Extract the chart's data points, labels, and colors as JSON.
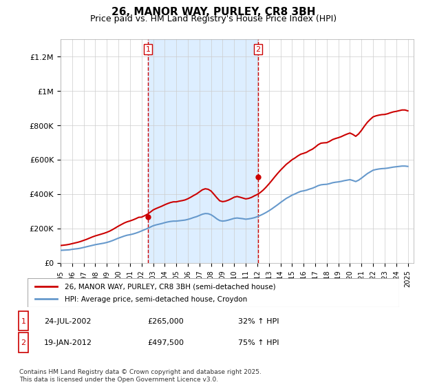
{
  "title": "26, MANOR WAY, PURLEY, CR8 3BH",
  "subtitle": "Price paid vs. HM Land Registry's House Price Index (HPI)",
  "ylabel_ticks": [
    "£0",
    "£200K",
    "£400K",
    "£600K",
    "£800K",
    "£1M",
    "£1.2M"
  ],
  "ytick_values": [
    0,
    200000,
    400000,
    600000,
    800000,
    1000000,
    1200000
  ],
  "ylim": [
    0,
    1300000
  ],
  "xlim_start": 1995,
  "xlim_end": 2025.5,
  "purchase1_date": 2002.56,
  "purchase1_price": 265000,
  "purchase1_label": "1",
  "purchase2_date": 2012.05,
  "purchase2_price": 497500,
  "purchase2_label": "2",
  "line1_label": "26, MANOR WAY, PURLEY, CR8 3BH (semi-detached house)",
  "line2_label": "HPI: Average price, semi-detached house, Croydon",
  "line1_color": "#cc0000",
  "line2_color": "#6699cc",
  "shade_color": "#ddeeff",
  "vline_color": "#cc0000",
  "annotation1": "1    24-JUL-2002    £265,000    32% ↑ HPI",
  "annotation2": "2    19-JAN-2012    £497,500    75% ↑ HPI",
  "footer": "Contains HM Land Registry data © Crown copyright and database right 2025.\nThis data is licensed under the Open Government Licence v3.0.",
  "hpi_years": [
    1995.0,
    1995.25,
    1995.5,
    1995.75,
    1996.0,
    1996.25,
    1996.5,
    1996.75,
    1997.0,
    1997.25,
    1997.5,
    1997.75,
    1998.0,
    1998.25,
    1998.5,
    1998.75,
    1999.0,
    1999.25,
    1999.5,
    1999.75,
    2000.0,
    2000.25,
    2000.5,
    2000.75,
    2001.0,
    2001.25,
    2001.5,
    2001.75,
    2002.0,
    2002.25,
    2002.5,
    2002.75,
    2003.0,
    2003.25,
    2003.5,
    2003.75,
    2004.0,
    2004.25,
    2004.5,
    2004.75,
    2005.0,
    2005.25,
    2005.5,
    2005.75,
    2006.0,
    2006.25,
    2006.5,
    2006.75,
    2007.0,
    2007.25,
    2007.5,
    2007.75,
    2008.0,
    2008.25,
    2008.5,
    2008.75,
    2009.0,
    2009.25,
    2009.5,
    2009.75,
    2010.0,
    2010.25,
    2010.5,
    2010.75,
    2011.0,
    2011.25,
    2011.5,
    2011.75,
    2012.0,
    2012.25,
    2012.5,
    2012.75,
    2013.0,
    2013.25,
    2013.5,
    2013.75,
    2014.0,
    2014.25,
    2014.5,
    2014.75,
    2015.0,
    2015.25,
    2015.5,
    2015.75,
    2016.0,
    2016.25,
    2016.5,
    2016.75,
    2017.0,
    2017.25,
    2017.5,
    2017.75,
    2018.0,
    2018.25,
    2018.5,
    2018.75,
    2019.0,
    2019.25,
    2019.5,
    2019.75,
    2020.0,
    2020.25,
    2020.5,
    2020.75,
    2021.0,
    2021.25,
    2021.5,
    2021.75,
    2022.0,
    2022.25,
    2022.5,
    2022.75,
    2023.0,
    2023.25,
    2023.5,
    2023.75,
    2024.0,
    2024.25,
    2024.5,
    2024.75,
    2025.0
  ],
  "hpi_values": [
    72000,
    73000,
    74000,
    75000,
    78000,
    80000,
    82000,
    85000,
    89000,
    93000,
    97000,
    101000,
    105000,
    108000,
    111000,
    114000,
    118000,
    123000,
    129000,
    136000,
    143000,
    149000,
    155000,
    160000,
    163000,
    167000,
    172000,
    178000,
    185000,
    192000,
    199000,
    207000,
    215000,
    220000,
    224000,
    228000,
    233000,
    237000,
    240000,
    242000,
    242000,
    244000,
    246000,
    248000,
    252000,
    257000,
    263000,
    268000,
    275000,
    282000,
    286000,
    285000,
    279000,
    268000,
    255000,
    245000,
    242000,
    244000,
    248000,
    253000,
    258000,
    260000,
    258000,
    256000,
    253000,
    255000,
    258000,
    262000,
    268000,
    275000,
    283000,
    292000,
    302000,
    313000,
    325000,
    337000,
    350000,
    362000,
    374000,
    383000,
    393000,
    400000,
    408000,
    415000,
    418000,
    422000,
    428000,
    433000,
    440000,
    448000,
    453000,
    455000,
    456000,
    460000,
    465000,
    468000,
    470000,
    473000,
    477000,
    480000,
    483000,
    478000,
    472000,
    480000,
    492000,
    505000,
    518000,
    528000,
    538000,
    542000,
    545000,
    547000,
    548000,
    550000,
    553000,
    556000,
    558000,
    560000,
    562000,
    562000,
    560000
  ],
  "price_years": [
    1995.0,
    1995.25,
    1995.5,
    1995.75,
    1996.0,
    1996.25,
    1996.5,
    1996.75,
    1997.0,
    1997.25,
    1997.5,
    1997.75,
    1998.0,
    1998.25,
    1998.5,
    1998.75,
    1999.0,
    1999.25,
    1999.5,
    1999.75,
    2000.0,
    2000.25,
    2000.5,
    2000.75,
    2001.0,
    2001.25,
    2001.5,
    2001.75,
    2002.0,
    2002.25,
    2002.5,
    2002.75,
    2003.0,
    2003.25,
    2003.5,
    2003.75,
    2004.0,
    2004.25,
    2004.5,
    2004.75,
    2005.0,
    2005.25,
    2005.5,
    2005.75,
    2006.0,
    2006.25,
    2006.5,
    2006.75,
    2007.0,
    2007.25,
    2007.5,
    2007.75,
    2008.0,
    2008.25,
    2008.5,
    2008.75,
    2009.0,
    2009.25,
    2009.5,
    2009.75,
    2010.0,
    2010.25,
    2010.5,
    2010.75,
    2011.0,
    2011.25,
    2011.5,
    2011.75,
    2012.0,
    2012.25,
    2012.5,
    2012.75,
    2013.0,
    2013.25,
    2013.5,
    2013.75,
    2014.0,
    2014.25,
    2014.5,
    2014.75,
    2015.0,
    2015.25,
    2015.5,
    2015.75,
    2016.0,
    2016.25,
    2016.5,
    2016.75,
    2017.0,
    2017.25,
    2017.5,
    2017.75,
    2018.0,
    2018.25,
    2018.5,
    2018.75,
    2019.0,
    2019.25,
    2019.5,
    2019.75,
    2020.0,
    2020.25,
    2020.5,
    2020.75,
    2021.0,
    2021.25,
    2021.5,
    2021.75,
    2022.0,
    2022.25,
    2022.5,
    2022.75,
    2023.0,
    2023.25,
    2023.5,
    2023.75,
    2024.0,
    2024.25,
    2024.5,
    2024.75,
    2025.0
  ],
  "price_values": [
    100000,
    102000,
    104000,
    107000,
    111000,
    115000,
    119000,
    124000,
    130000,
    136000,
    143000,
    150000,
    156000,
    161000,
    166000,
    171000,
    177000,
    184000,
    193000,
    203000,
    213000,
    222000,
    231000,
    238000,
    243000,
    249000,
    256000,
    264000,
    265000,
    273000,
    282000,
    294000,
    307000,
    315000,
    322000,
    329000,
    337000,
    344000,
    350000,
    354000,
    354000,
    358000,
    361000,
    365000,
    372000,
    381000,
    391000,
    400000,
    412000,
    424000,
    430000,
    427000,
    417000,
    398000,
    378000,
    360000,
    355000,
    358000,
    364000,
    372000,
    381000,
    385000,
    381000,
    376000,
    371000,
    374000,
    380000,
    389000,
    397000,
    408000,
    422000,
    439000,
    458000,
    478000,
    499000,
    519000,
    538000,
    555000,
    572000,
    585000,
    599000,
    609000,
    621000,
    631000,
    636000,
    642000,
    652000,
    660000,
    672000,
    686000,
    695000,
    697000,
    698000,
    706000,
    716000,
    722000,
    727000,
    733000,
    741000,
    748000,
    754000,
    746000,
    735000,
    749000,
    770000,
    794000,
    816000,
    833000,
    848000,
    854000,
    858000,
    861000,
    862000,
    866000,
    872000,
    877000,
    880000,
    884000,
    888000,
    888000,
    883000
  ],
  "xtick_years": [
    1995,
    1996,
    1997,
    1998,
    1999,
    2000,
    2001,
    2002,
    2003,
    2004,
    2005,
    2006,
    2007,
    2008,
    2009,
    2010,
    2011,
    2012,
    2013,
    2014,
    2015,
    2016,
    2017,
    2018,
    2019,
    2020,
    2021,
    2022,
    2023,
    2024,
    2025
  ]
}
